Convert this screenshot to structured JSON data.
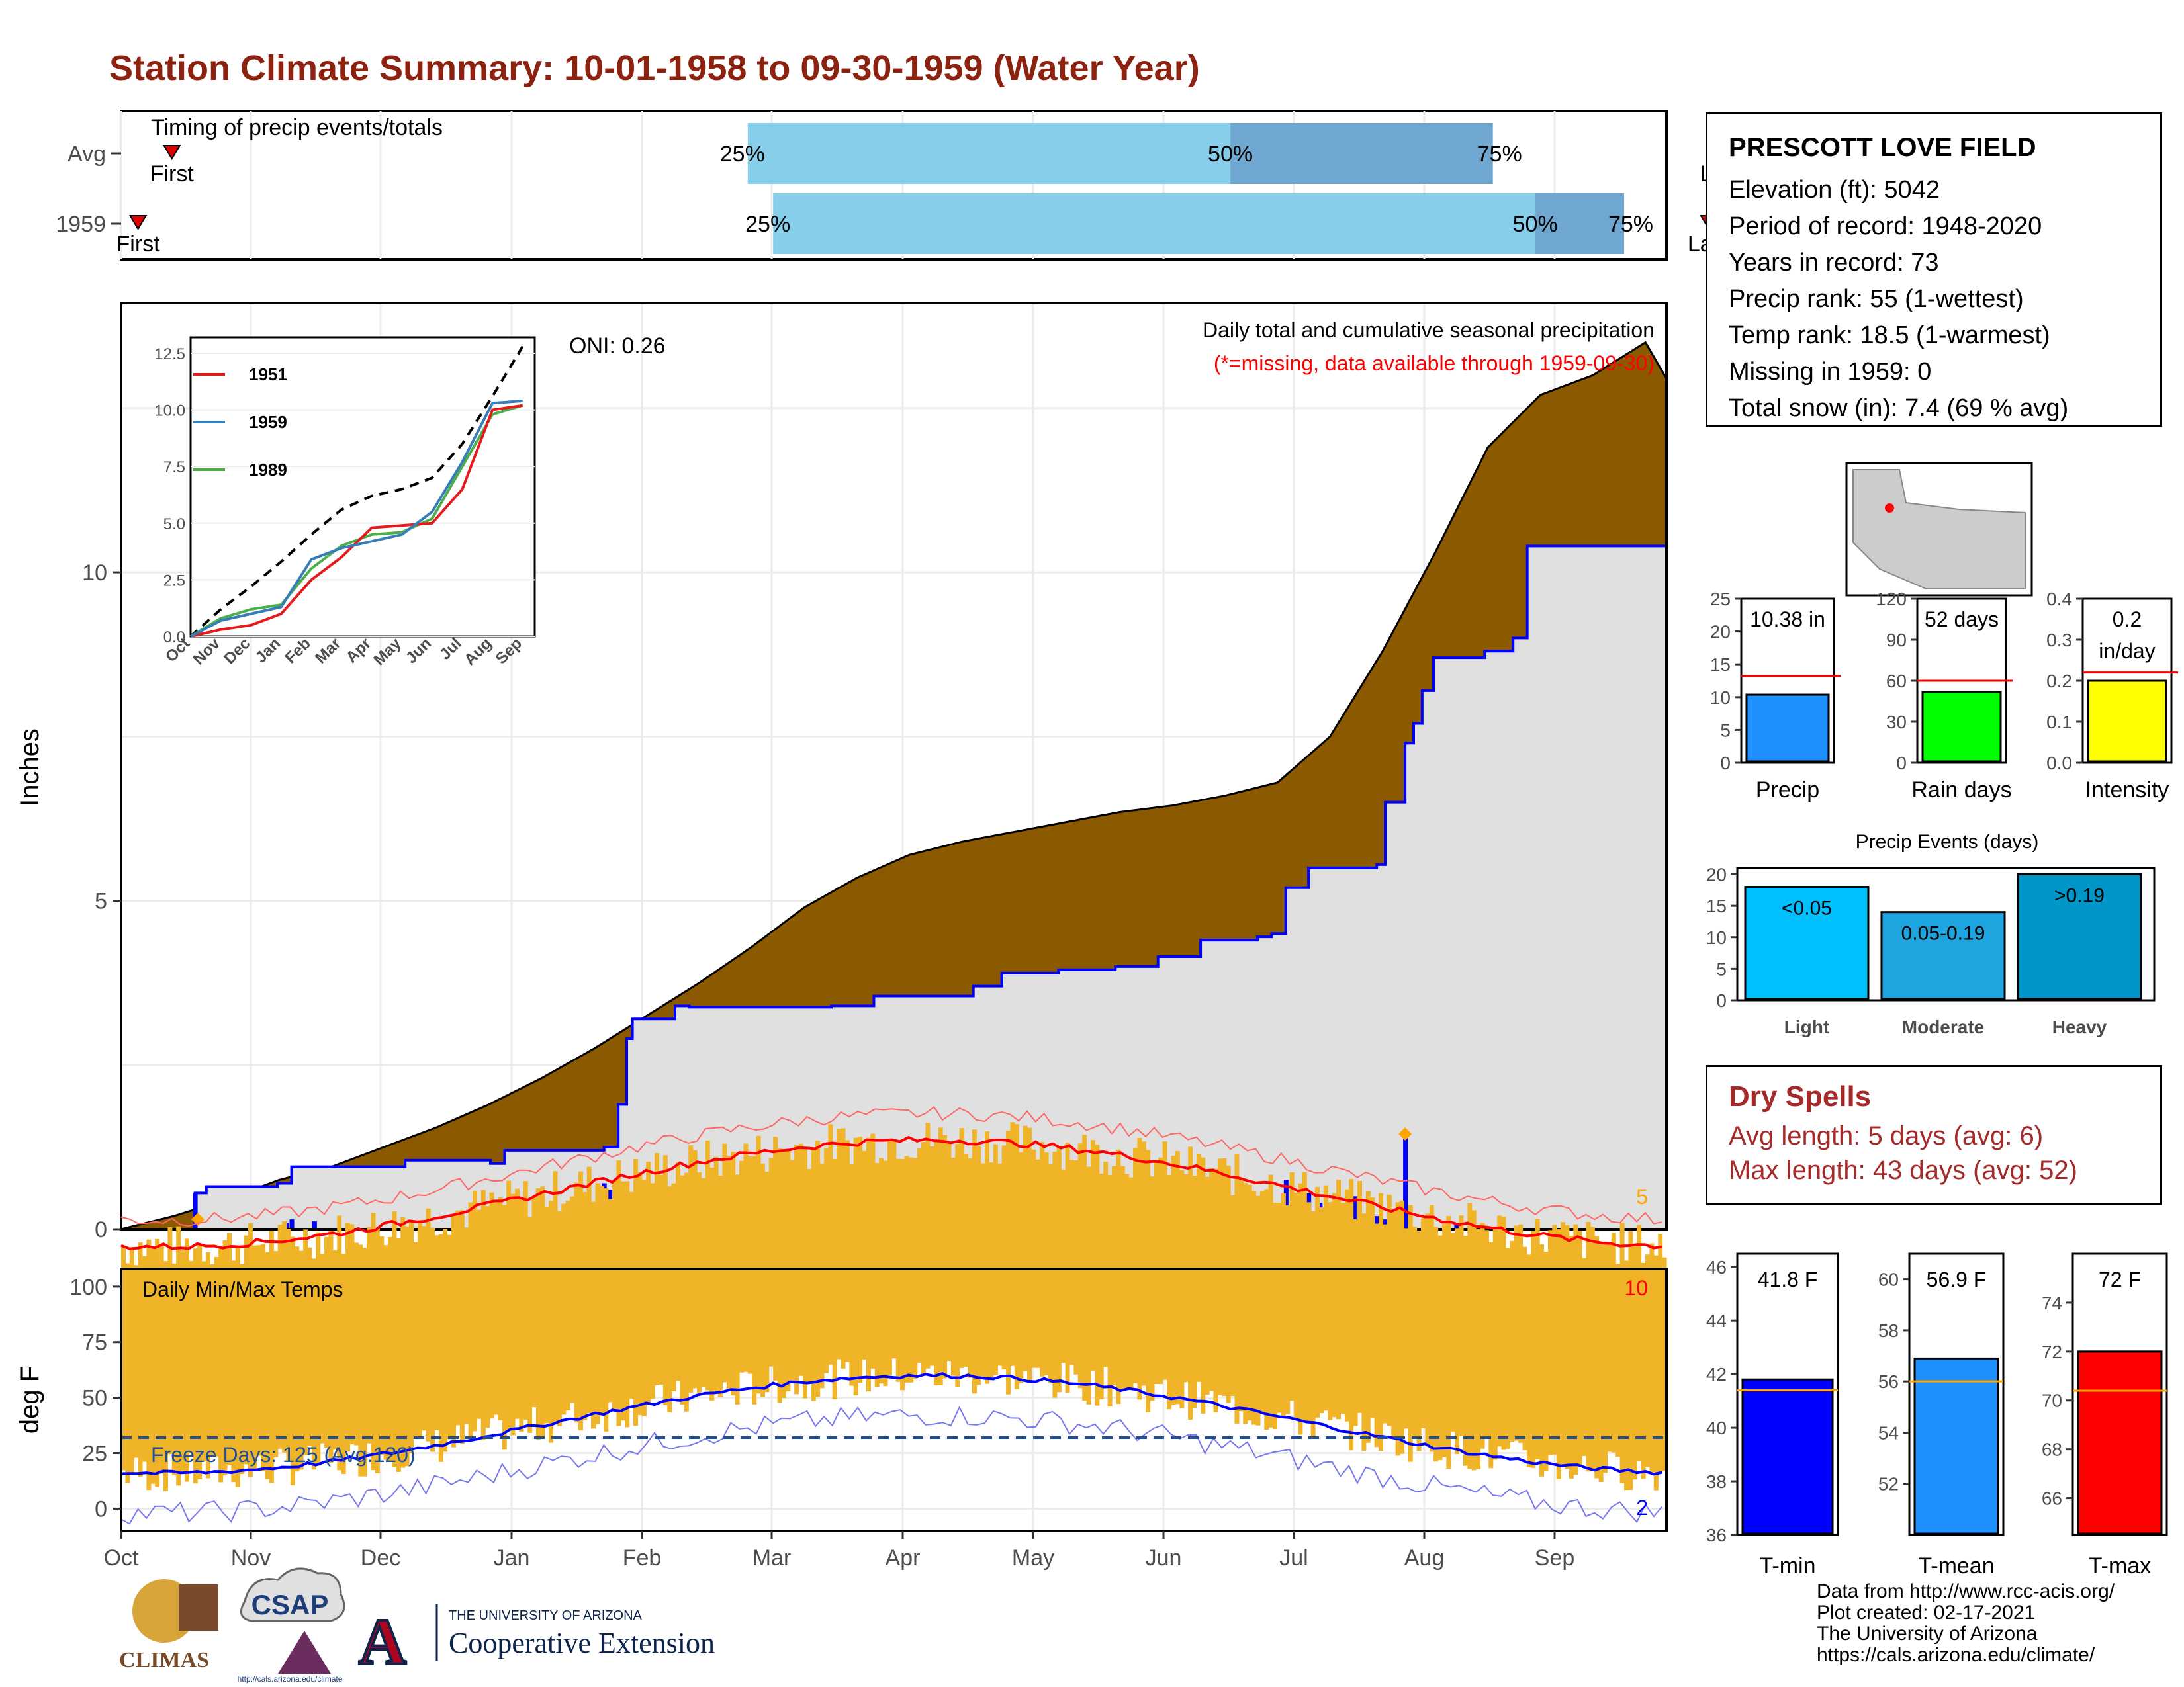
{
  "title": "Station Climate Summary: 10-01-1958 to 09-30-1959 (Water Year)",
  "colors": {
    "title": "#8b2310",
    "brown": "#8b5a00",
    "gray_fill": "#e0e0e0",
    "blue": "#0000ff",
    "orange": "#f0b428",
    "red": "#ff0000",
    "light_blue": "#87ceeb",
    "mid_blue": "#6fa7d0"
  },
  "months": [
    "Oct",
    "Nov",
    "Dec",
    "Jan",
    "Feb",
    "Mar",
    "Apr",
    "May",
    "Jun",
    "Jul",
    "Aug",
    "Sep"
  ],
  "timing": {
    "label": "Timing of precip events/totals",
    "rows": [
      {
        "name": "Avg",
        "first_day": 12,
        "q25_day": 148,
        "q50_day": 262,
        "q75_day": 324,
        "last_day": 378,
        "first_label": "First",
        "last_label": "Last",
        "q25_label": "25%",
        "q50_label": "50%",
        "q75_label": "75%"
      },
      {
        "name": "1959",
        "first_day": 4,
        "q25_day": 154,
        "q50_day": 334,
        "q75_day": 355,
        "last_day": 375,
        "first_label": "First",
        "last_label": "Last",
        "q25_label": "25%",
        "q50_label": "50%",
        "q75_label": "75%"
      }
    ]
  },
  "precip": {
    "ylabel": "Inches",
    "yticks": [
      0,
      5,
      10
    ],
    "ylim": [
      0,
      14
    ],
    "header": "Daily total and cumulative seasonal precipitation",
    "missing_note": "(*=missing, data available through 1959-09-30)",
    "oni": "ONI: 0.26",
    "count_label": "5",
    "avg_cumulative": [
      [
        0,
        0
      ],
      [
        15,
        0.2
      ],
      [
        30,
        0.45
      ],
      [
        45,
        0.75
      ],
      [
        60,
        0.95
      ],
      [
        75,
        1.25
      ],
      [
        90,
        1.55
      ],
      [
        105,
        1.9
      ],
      [
        120,
        2.3
      ],
      [
        135,
        2.75
      ],
      [
        150,
        3.25
      ],
      [
        165,
        3.75
      ],
      [
        180,
        4.3
      ],
      [
        195,
        4.9
      ],
      [
        210,
        5.35
      ],
      [
        225,
        5.7
      ],
      [
        240,
        5.9
      ],
      [
        255,
        6.05
      ],
      [
        270,
        6.2
      ],
      [
        285,
        6.35
      ],
      [
        300,
        6.45
      ],
      [
        315,
        6.6
      ],
      [
        330,
        6.8
      ],
      [
        345,
        7.5
      ],
      [
        360,
        8.8
      ],
      [
        375,
        10.3
      ],
      [
        390,
        11.9
      ],
      [
        405,
        12.7
      ],
      [
        420,
        13.0
      ],
      [
        435,
        13.5
      ],
      [
        441,
        12.95
      ]
    ],
    "obs_cumulative": [
      [
        0,
        0
      ],
      [
        24,
        0
      ],
      [
        26,
        0.55
      ],
      [
        30,
        0.65
      ],
      [
        55,
        0.7
      ],
      [
        60,
        0.95
      ],
      [
        100,
        1.05
      ],
      [
        130,
        1.0
      ],
      [
        135,
        1.2
      ],
      [
        170,
        1.25
      ],
      [
        175,
        1.9
      ],
      [
        178,
        2.9
      ],
      [
        180,
        3.2
      ],
      [
        195,
        3.4
      ],
      [
        200,
        3.38
      ],
      [
        250,
        3.4
      ],
      [
        265,
        3.55
      ],
      [
        300,
        3.7
      ],
      [
        310,
        3.9
      ],
      [
        330,
        3.95
      ],
      [
        350,
        4.0
      ],
      [
        365,
        4.15
      ],
      [
        380,
        4.4
      ],
      [
        400,
        4.45
      ],
      [
        405,
        4.5
      ],
      [
        410,
        5.2
      ],
      [
        418,
        5.5
      ],
      [
        430,
        5.5
      ],
      [
        442,
        5.55
      ],
      [
        445,
        6.5
      ],
      [
        452,
        7.4
      ],
      [
        455,
        7.7
      ],
      [
        458,
        8.2
      ],
      [
        462,
        8.7
      ],
      [
        480,
        8.8
      ],
      [
        490,
        9.0
      ],
      [
        495,
        10.4
      ],
      [
        520,
        10.4
      ],
      [
        530,
        10.4
      ],
      [
        544,
        10.4
      ]
    ],
    "daily_bars": [
      [
        26,
        0.55
      ],
      [
        170,
        0.7
      ],
      [
        172,
        0.6
      ],
      [
        174,
        0.5
      ],
      [
        178,
        0.35
      ],
      [
        182,
        0.3
      ],
      [
        187,
        0.15
      ],
      [
        230,
        0.05
      ],
      [
        245,
        0.3
      ],
      [
        290,
        0.05
      ],
      [
        310,
        0.15
      ],
      [
        330,
        0.05
      ],
      [
        346,
        0.15
      ],
      [
        350,
        0.1
      ],
      [
        360,
        0.05
      ],
      [
        385,
        0.35
      ],
      [
        390,
        0.3
      ],
      [
        393,
        0.25
      ],
      [
        395,
        0.1
      ],
      [
        410,
        0.75
      ],
      [
        418,
        0.55
      ],
      [
        422,
        0.4
      ],
      [
        425,
        0.2
      ],
      [
        430,
        0.25
      ],
      [
        434,
        0.5
      ],
      [
        438,
        0.15
      ],
      [
        442,
        0.2
      ],
      [
        445,
        0.15
      ],
      [
        452,
        1.4
      ],
      [
        470,
        0.1
      ],
      [
        130,
        0.05
      ],
      [
        58,
        0.1
      ],
      [
        60,
        0.15
      ],
      [
        68,
        0.12
      ]
    ],
    "orange_diamonds": [
      [
        27,
        0.15
      ],
      [
        215,
        0.3
      ],
      [
        346,
        0.3
      ],
      [
        348,
        0.1
      ],
      [
        452,
        1.45
      ]
    ],
    "inset": {
      "legend": [
        "1951",
        "1959",
        "1989"
      ],
      "legend_colors": [
        "#e41a1c",
        "#377eb8",
        "#4daf4a"
      ],
      "yticks": [
        "0.0",
        "2.5",
        "5.0",
        "7.5",
        "10.0",
        "12.5"
      ],
      "xticks": [
        "Oct",
        "Nov",
        "Dec",
        "Jan",
        "Feb",
        "Mar",
        "Apr",
        "May",
        "Jun",
        "Jul",
        "Aug",
        "Sep"
      ],
      "avg": [
        [
          0,
          0
        ],
        [
          1,
          1.2
        ],
        [
          2,
          2.2
        ],
        [
          3,
          3.3
        ],
        [
          4,
          4.5
        ],
        [
          5,
          5.6
        ],
        [
          6,
          6.2
        ],
        [
          7,
          6.5
        ],
        [
          8,
          7.0
        ],
        [
          9,
          8.5
        ],
        [
          10,
          10.6
        ],
        [
          11,
          12.8
        ]
      ],
      "s1951": [
        [
          0,
          0
        ],
        [
          1,
          0.3
        ],
        [
          2,
          0.5
        ],
        [
          3,
          1.0
        ],
        [
          4,
          2.5
        ],
        [
          5,
          3.5
        ],
        [
          6,
          4.8
        ],
        [
          7,
          4.9
        ],
        [
          8,
          5.0
        ],
        [
          9,
          6.5
        ],
        [
          10,
          10.0
        ],
        [
          11,
          10.2
        ]
      ],
      "s1959": [
        [
          0,
          0
        ],
        [
          1,
          0.7
        ],
        [
          2,
          1.0
        ],
        [
          3,
          1.3
        ],
        [
          4,
          3.4
        ],
        [
          5,
          3.9
        ],
        [
          6,
          4.2
        ],
        [
          7,
          4.5
        ],
        [
          8,
          5.5
        ],
        [
          9,
          7.7
        ],
        [
          10,
          10.3
        ],
        [
          11,
          10.4
        ]
      ],
      "s1989": [
        [
          0,
          0
        ],
        [
          1,
          0.8
        ],
        [
          2,
          1.2
        ],
        [
          3,
          1.4
        ],
        [
          4,
          3.0
        ],
        [
          5,
          4.0
        ],
        [
          6,
          4.5
        ],
        [
          7,
          4.6
        ],
        [
          8,
          5.2
        ],
        [
          9,
          7.5
        ],
        [
          10,
          9.8
        ],
        [
          11,
          10.2
        ]
      ]
    }
  },
  "stats_bars": [
    {
      "label": "Precip",
      "value_label": "10.38 in",
      "value": 10.38,
      "avg": 13.2,
      "ymax": 25,
      "yticks": [
        "0",
        "5",
        "10",
        "15",
        "20",
        "25"
      ],
      "color": "#1e90ff"
    },
    {
      "label": "Rain days",
      "value_label": "52 days",
      "value": 52,
      "avg": 60,
      "ymax": 120,
      "yticks": [
        "0",
        "30",
        "60",
        "90",
        "120"
      ],
      "color": "#00ff00"
    },
    {
      "label": "Intensity",
      "value_label": "0.2",
      "value_label2": "in/day",
      "value": 0.2,
      "avg": 0.22,
      "ymax": 0.4,
      "yticks": [
        "0.0",
        "0.1",
        "0.2",
        "0.3",
        "0.4"
      ],
      "color": "#ffff00"
    }
  ],
  "events": {
    "title": "Precip Events (days)",
    "yticks": [
      "0",
      "5",
      "10",
      "15",
      "20"
    ],
    "bars": [
      {
        "cat": "Light",
        "label": "<0.05",
        "value": 18,
        "color": "#00bfff"
      },
      {
        "cat": "Moderate",
        "label": "0.05-0.19",
        "value": 14,
        "color": "#1ea5e0"
      },
      {
        "cat": "Heavy",
        "label": ">0.19",
        "value": 20,
        "color": "#0096c8"
      }
    ]
  },
  "station": {
    "name": "PRESCOTT LOVE FIELD",
    "lines": [
      "Elevation (ft): 5042",
      "Period of record: 1948-2020",
      "Years in record: 73",
      "Precip rank: 55 (1-wettest)",
      "Temp rank: 18.5 (1-warmest)",
      "Missing in 1959: 0",
      "Total snow (in): 7.4 (69 % avg)"
    ]
  },
  "dry_spells": {
    "title": "Dry Spells",
    "avg": "Avg length: 5 days (avg: 6)",
    "max": "Max length: 43 days (avg: 52)"
  },
  "temps": {
    "label": "Daily Min/Max Temps",
    "ylabel": "deg F",
    "yticks": [
      0,
      25,
      50,
      75,
      100
    ],
    "freeze": "Freeze Days: 125 (Avg.120)",
    "count_hot": "10",
    "count_cold": "2",
    "freeze_line": 32
  },
  "temp_bars": [
    {
      "label": "T-min",
      "value_label": "41.8 F",
      "value": 41.8,
      "avg": 41.4,
      "ymin": 36,
      "ymax": 46.5,
      "yticks": [
        "36",
        "38",
        "40",
        "42",
        "44",
        "46"
      ],
      "color": "#0000ff"
    },
    {
      "label": "T-mean",
      "value_label": "56.9 F",
      "value": 56.9,
      "avg": 56.0,
      "ymin": 50,
      "ymax": 61,
      "yticks": [
        "52",
        "54",
        "56",
        "58",
        "60"
      ],
      "color": "#1e90ff"
    },
    {
      "label": "T-max",
      "value_label": "72 F",
      "value": 72,
      "avg": 70.4,
      "ymin": 64.5,
      "ymax": 76,
      "yticks": [
        "66",
        "68",
        "70",
        "72",
        "74"
      ],
      "color": "#ff0000"
    }
  ],
  "credits": [
    "Data from http://www.rcc-acis.org/",
    "Plot created: 02-17-2021",
    "The University of Arizona",
    "https://cals.arizona.edu/climate/"
  ],
  "logos": {
    "climas": "CLIMAS",
    "csap": "CSAP",
    "ua_small": "THE UNIVERSITY OF ARIZONA",
    "ua_big": "Cooperative Extension",
    "csap_url": "http://cals.arizona.edu/climate"
  }
}
